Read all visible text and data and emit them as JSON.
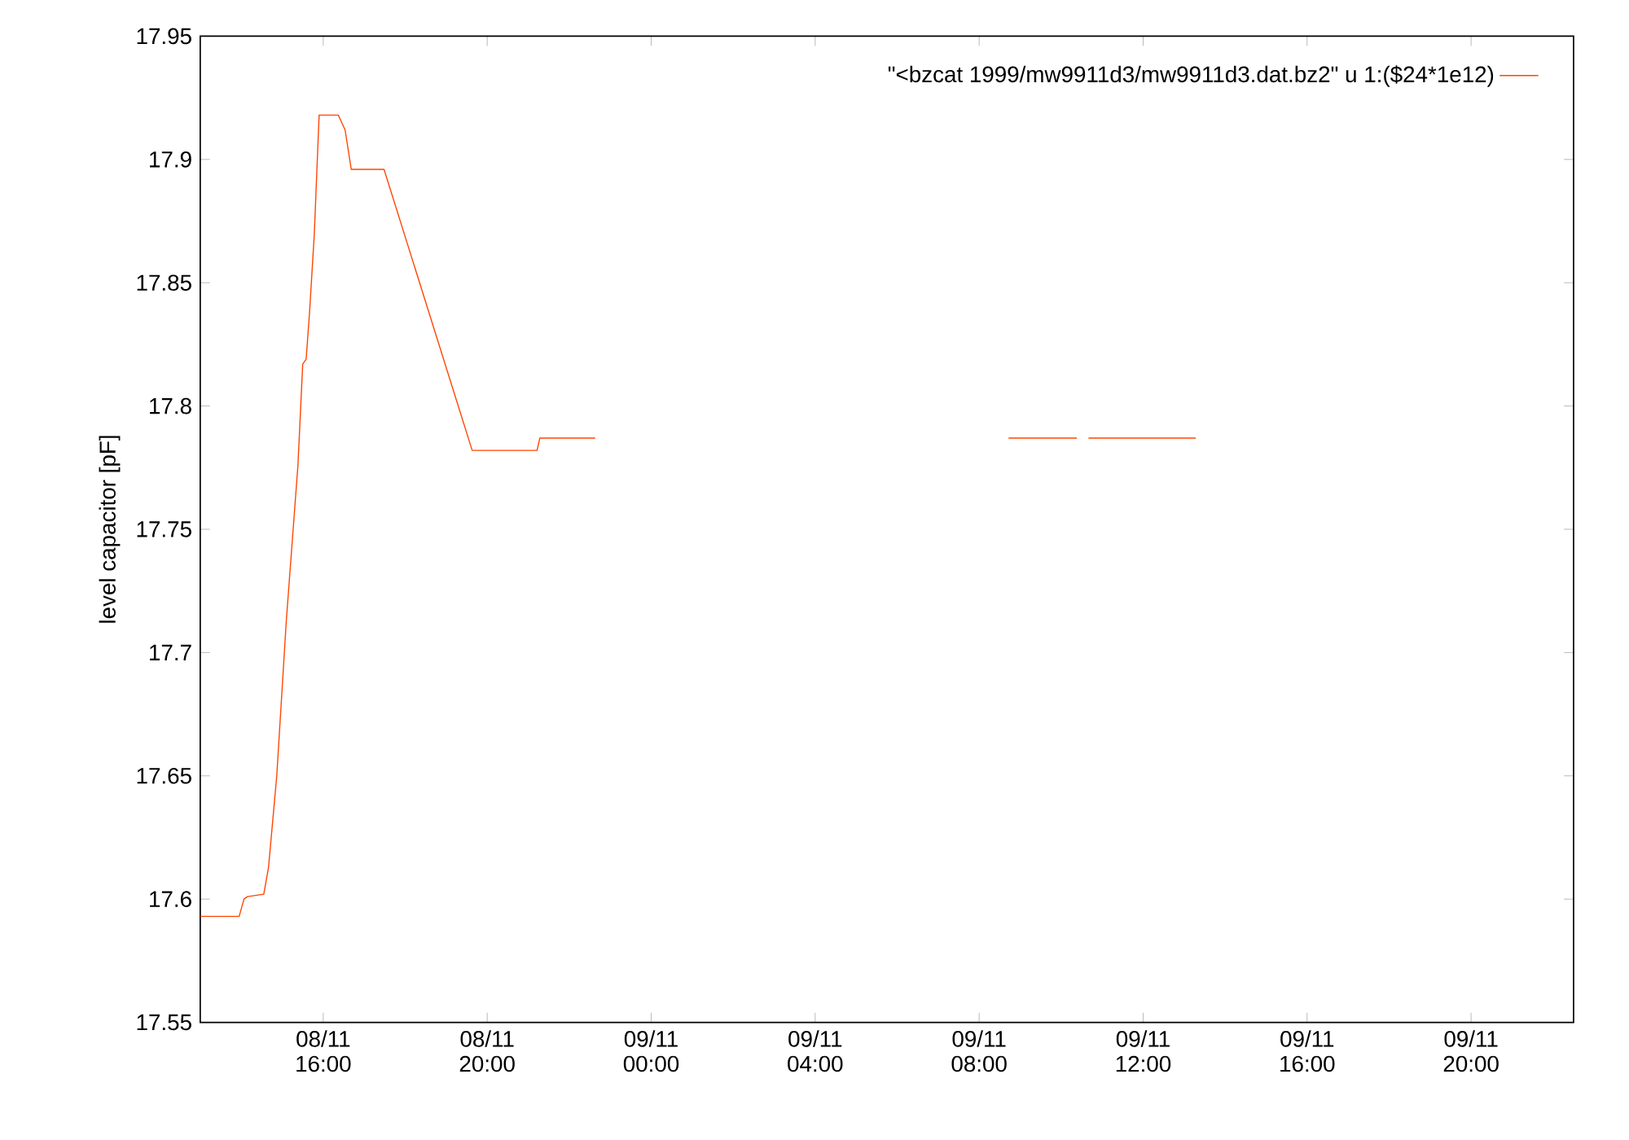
{
  "chart_data": {
    "type": "line",
    "ylabel": "level capacitor [pF]",
    "x": [
      "1999-11-08T13:00",
      "1999-11-08T13:57",
      "1999-11-08T14:04",
      "1999-11-08T14:09",
      "1999-11-08T14:33",
      "1999-11-08T14:40",
      "1999-11-08T14:52",
      "1999-11-08T15:06",
      "1999-11-08T15:23",
      "1999-11-08T15:30",
      "1999-11-08T15:35",
      "1999-11-08T15:40",
      "1999-11-08T15:47",
      "1999-11-08T15:54",
      "1999-11-08T16:22",
      "1999-11-08T16:32",
      "1999-11-08T16:41",
      "1999-11-08T17:29",
      "1999-11-08T19:38",
      "1999-11-08T21:13",
      "1999-11-08T21:17",
      "1999-11-08T22:38",
      "1999-11-09T03:00",
      "1999-11-09T08:43",
      "1999-11-09T10:23",
      "1999-11-09T10:30",
      "1999-11-09T10:40",
      "1999-11-09T13:17"
    ],
    "series": [
      {
        "name": "\"<bzcat 1999/mw9911d3/mw9911d3.dat.bz2\" u 1:($24*1e12)",
        "color": "#ff4500",
        "values": [
          17.593,
          17.593,
          17.6,
          17.601,
          17.602,
          17.613,
          17.65,
          17.713,
          17.776,
          17.817,
          17.819,
          17.838,
          17.87,
          17.918,
          17.918,
          17.912,
          17.896,
          17.896,
          17.782,
          17.782,
          17.787,
          17.787,
          null,
          17.787,
          17.787,
          null,
          17.787,
          17.787
        ]
      }
    ],
    "xlim": [
      "1999-11-08T13:00",
      "1999-11-09T22:30"
    ],
    "xticks": [
      {
        "value": "1999-11-08T16:00",
        "label": "08/11 16:00"
      },
      {
        "value": "1999-11-08T20:00",
        "label": "08/11 20:00"
      },
      {
        "value": "1999-11-09T00:00",
        "label": "09/11 00:00"
      },
      {
        "value": "1999-11-09T04:00",
        "label": "09/11 04:00"
      },
      {
        "value": "1999-11-09T08:00",
        "label": "09/11 08:00"
      },
      {
        "value": "1999-11-09T12:00",
        "label": "09/11 12:00"
      },
      {
        "value": "1999-11-09T16:00",
        "label": "09/11 16:00"
      },
      {
        "value": "1999-11-09T20:00",
        "label": "09/11 20:00"
      }
    ],
    "ylim": [
      17.55,
      17.95
    ],
    "yticks": [
      17.55,
      17.6,
      17.65,
      17.7,
      17.75,
      17.8,
      17.85,
      17.9,
      17.95
    ],
    "grid": false,
    "legend": "top right",
    "marker": "none",
    "line_style": "solid"
  }
}
